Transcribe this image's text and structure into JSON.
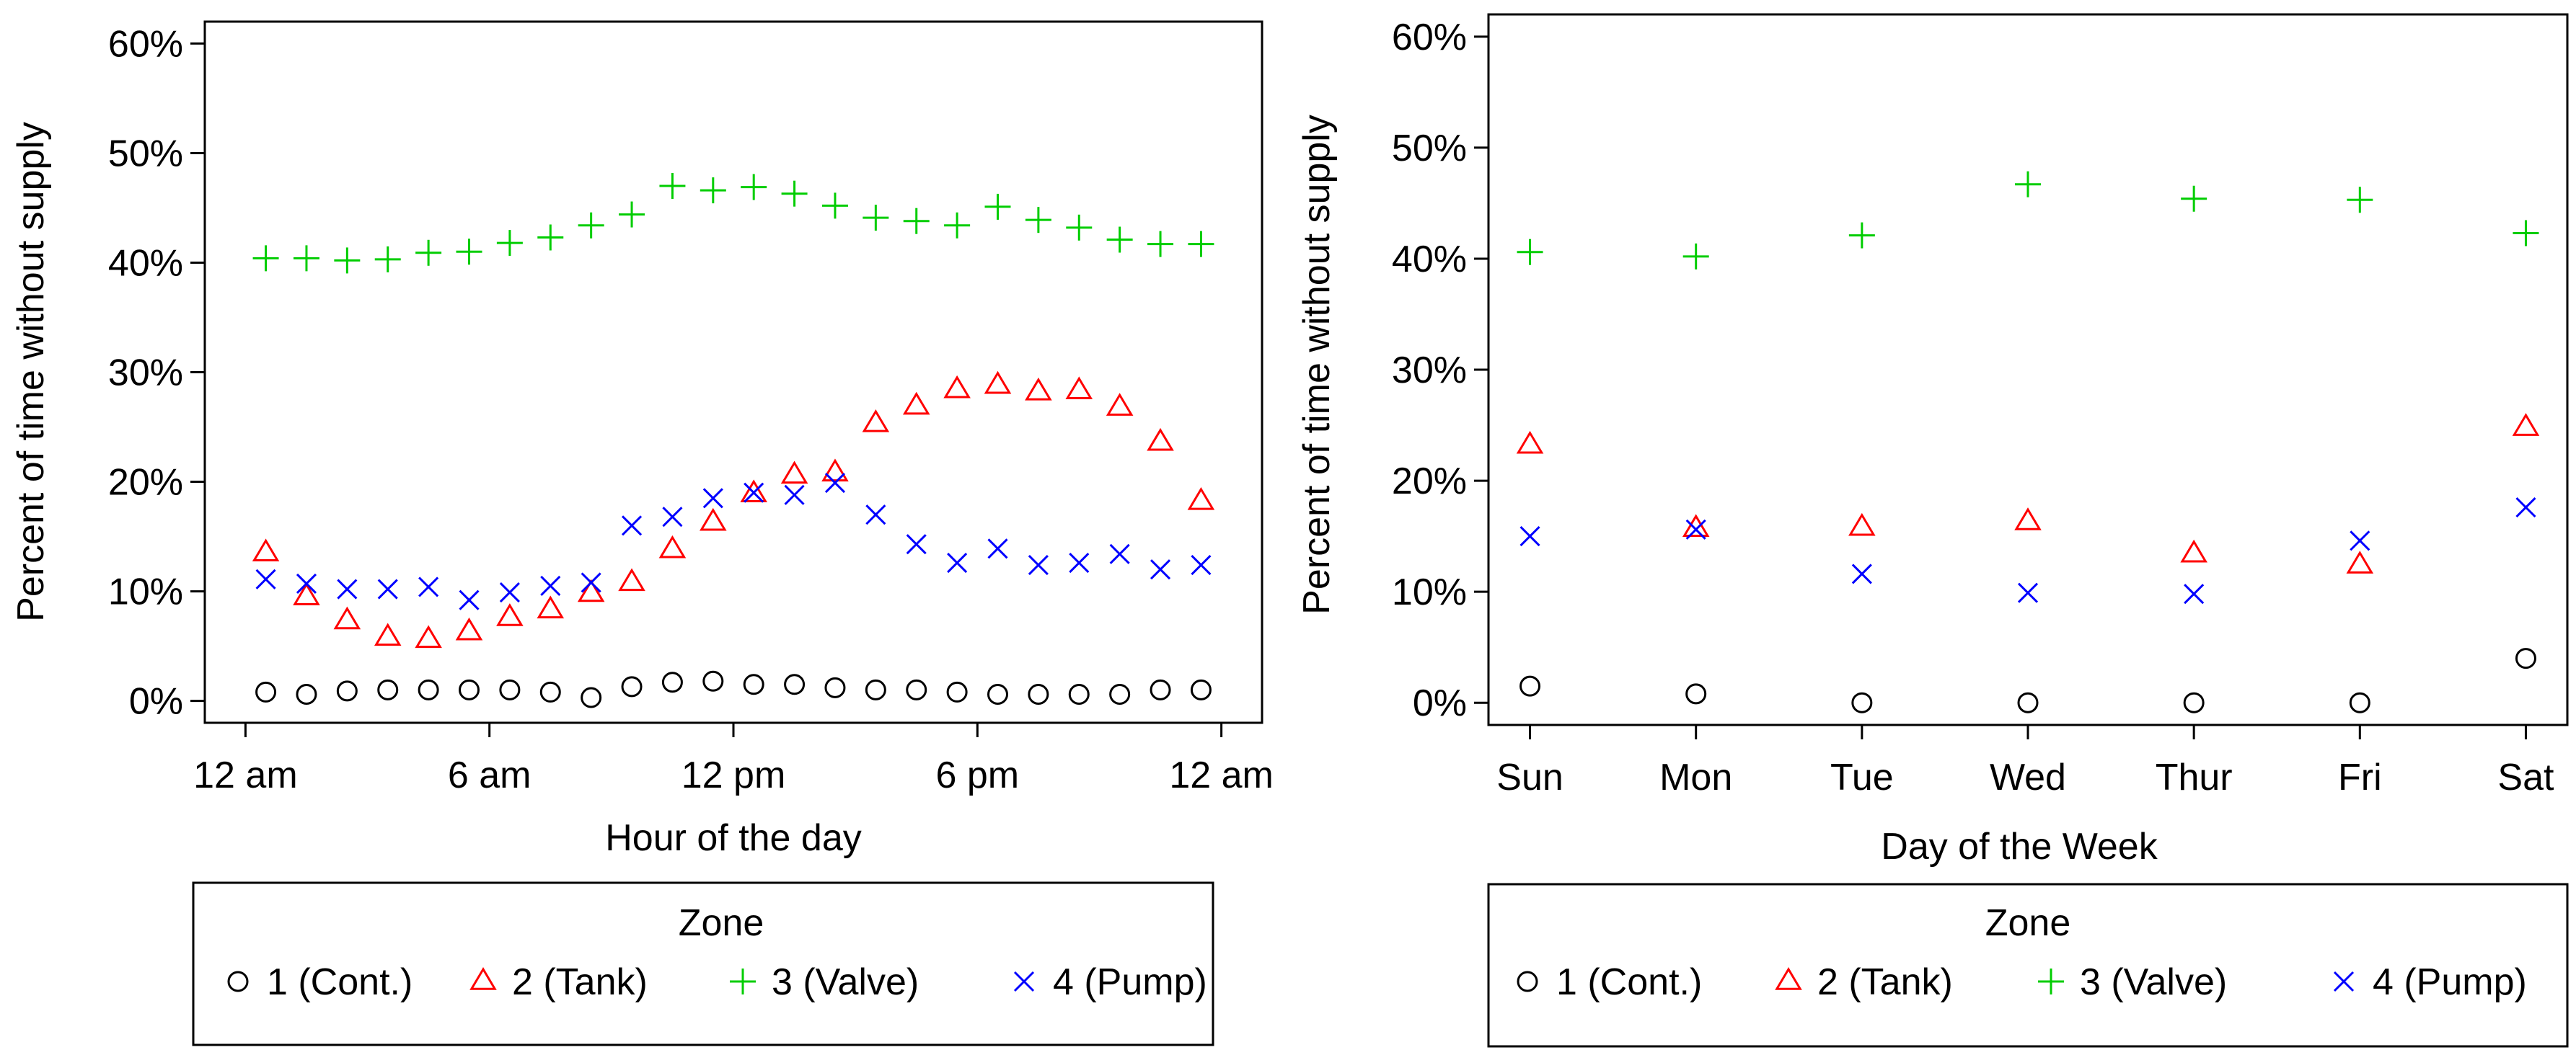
{
  "zone_colors": [
    "#000000",
    "#ff0000",
    "#00cd00",
    "#0000ff"
  ],
  "zone_shapes": [
    "circle",
    "triangle",
    "plus",
    "cross"
  ],
  "chart_data": [
    {
      "type": "scatter",
      "title": "",
      "xlabel": "Hour of the day",
      "ylabel": "Percent of time without supply",
      "x_ticks": [
        {
          "value": 0,
          "label": "12 am"
        },
        {
          "value": 6,
          "label": "6 am"
        },
        {
          "value": 12,
          "label": "12 pm"
        },
        {
          "value": 18,
          "label": "6 pm"
        },
        {
          "value": 24,
          "label": "12 am"
        }
      ],
      "y_ticks": [
        {
          "value": 0,
          "label": "0%"
        },
        {
          "value": 10,
          "label": "10%"
        },
        {
          "value": 20,
          "label": "20%"
        },
        {
          "value": 30,
          "label": "30%"
        },
        {
          "value": 40,
          "label": "40%"
        },
        {
          "value": 50,
          "label": "50%"
        },
        {
          "value": 60,
          "label": "60%"
        }
      ],
      "xlim": [
        -1,
        25
      ],
      "ylim": [
        -2,
        62
      ],
      "x": [
        0.5,
        1.5,
        2.5,
        3.5,
        4.5,
        5.5,
        6.5,
        7.5,
        8.5,
        9.5,
        10.5,
        11.5,
        12.5,
        13.5,
        14.5,
        15.5,
        16.5,
        17.5,
        18.5,
        19.5,
        20.5,
        21.5,
        22.5,
        23.5
      ],
      "series": [
        {
          "name": "1 (Cont.)",
          "values": [
            0.8,
            0.6,
            0.9,
            1.0,
            1.0,
            1.0,
            1.0,
            0.8,
            0.3,
            1.3,
            1.7,
            1.8,
            1.5,
            1.5,
            1.2,
            1.0,
            1.0,
            0.8,
            0.6,
            0.6,
            0.6,
            0.6,
            1.0,
            1.0
          ]
        },
        {
          "name": "2 (Tank)",
          "values": [
            13.5,
            9.5,
            7.3,
            5.8,
            5.6,
            6.3,
            7.6,
            8.3,
            9.8,
            10.8,
            13.8,
            16.3,
            18.9,
            20.6,
            20.8,
            25.3,
            26.9,
            28.4,
            28.8,
            28.2,
            28.3,
            26.8,
            23.6,
            18.2
          ]
        },
        {
          "name": "3 (Valve)",
          "values": [
            40.4,
            40.4,
            40.2,
            40.3,
            40.9,
            41.0,
            41.8,
            42.3,
            43.4,
            44.4,
            47.0,
            46.6,
            46.9,
            46.3,
            45.2,
            44.1,
            43.8,
            43.4,
            45.1,
            43.9,
            43.2,
            42.1,
            41.7,
            41.7
          ]
        },
        {
          "name": "4 (Pump)",
          "values": [
            11.1,
            10.7,
            10.2,
            10.2,
            10.4,
            9.2,
            9.9,
            10.5,
            10.8,
            16.0,
            16.8,
            18.5,
            19.0,
            18.8,
            19.9,
            17.0,
            14.3,
            12.6,
            13.9,
            12.4,
            12.6,
            13.4,
            12.0,
            12.4
          ]
        }
      ],
      "legend": {
        "title": "Zone",
        "position": "bottom"
      }
    },
    {
      "type": "scatter",
      "title": "",
      "xlabel": "Day of the Week",
      "ylabel": "Percent of time without supply",
      "categories": [
        "Sun",
        "Mon",
        "Tue",
        "Wed",
        "Thur",
        "Fri",
        "Sat"
      ],
      "y_ticks": [
        {
          "value": 0,
          "label": "0%"
        },
        {
          "value": 10,
          "label": "10%"
        },
        {
          "value": 20,
          "label": "20%"
        },
        {
          "value": 30,
          "label": "30%"
        },
        {
          "value": 40,
          "label": "40%"
        },
        {
          "value": 50,
          "label": "50%"
        },
        {
          "value": 60,
          "label": "60%"
        }
      ],
      "xlim": [
        0.75,
        7.25
      ],
      "ylim": [
        -2,
        62
      ],
      "series": [
        {
          "name": "1 (Cont.)",
          "values": [
            1.5,
            0.8,
            0.0,
            0.0,
            0.0,
            0.0,
            4.0
          ]
        },
        {
          "name": "2 (Tank)",
          "values": [
            23.2,
            15.7,
            15.8,
            16.3,
            13.4,
            12.4,
            24.8
          ]
        },
        {
          "name": "3 (Valve)",
          "values": [
            40.6,
            40.2,
            42.1,
            46.7,
            45.4,
            45.3,
            42.3
          ]
        },
        {
          "name": "4 (Pump)",
          "values": [
            15.0,
            15.6,
            11.6,
            9.9,
            9.8,
            14.6,
            17.6
          ]
        }
      ],
      "legend": {
        "title": "Zone",
        "position": "bottom"
      }
    }
  ]
}
